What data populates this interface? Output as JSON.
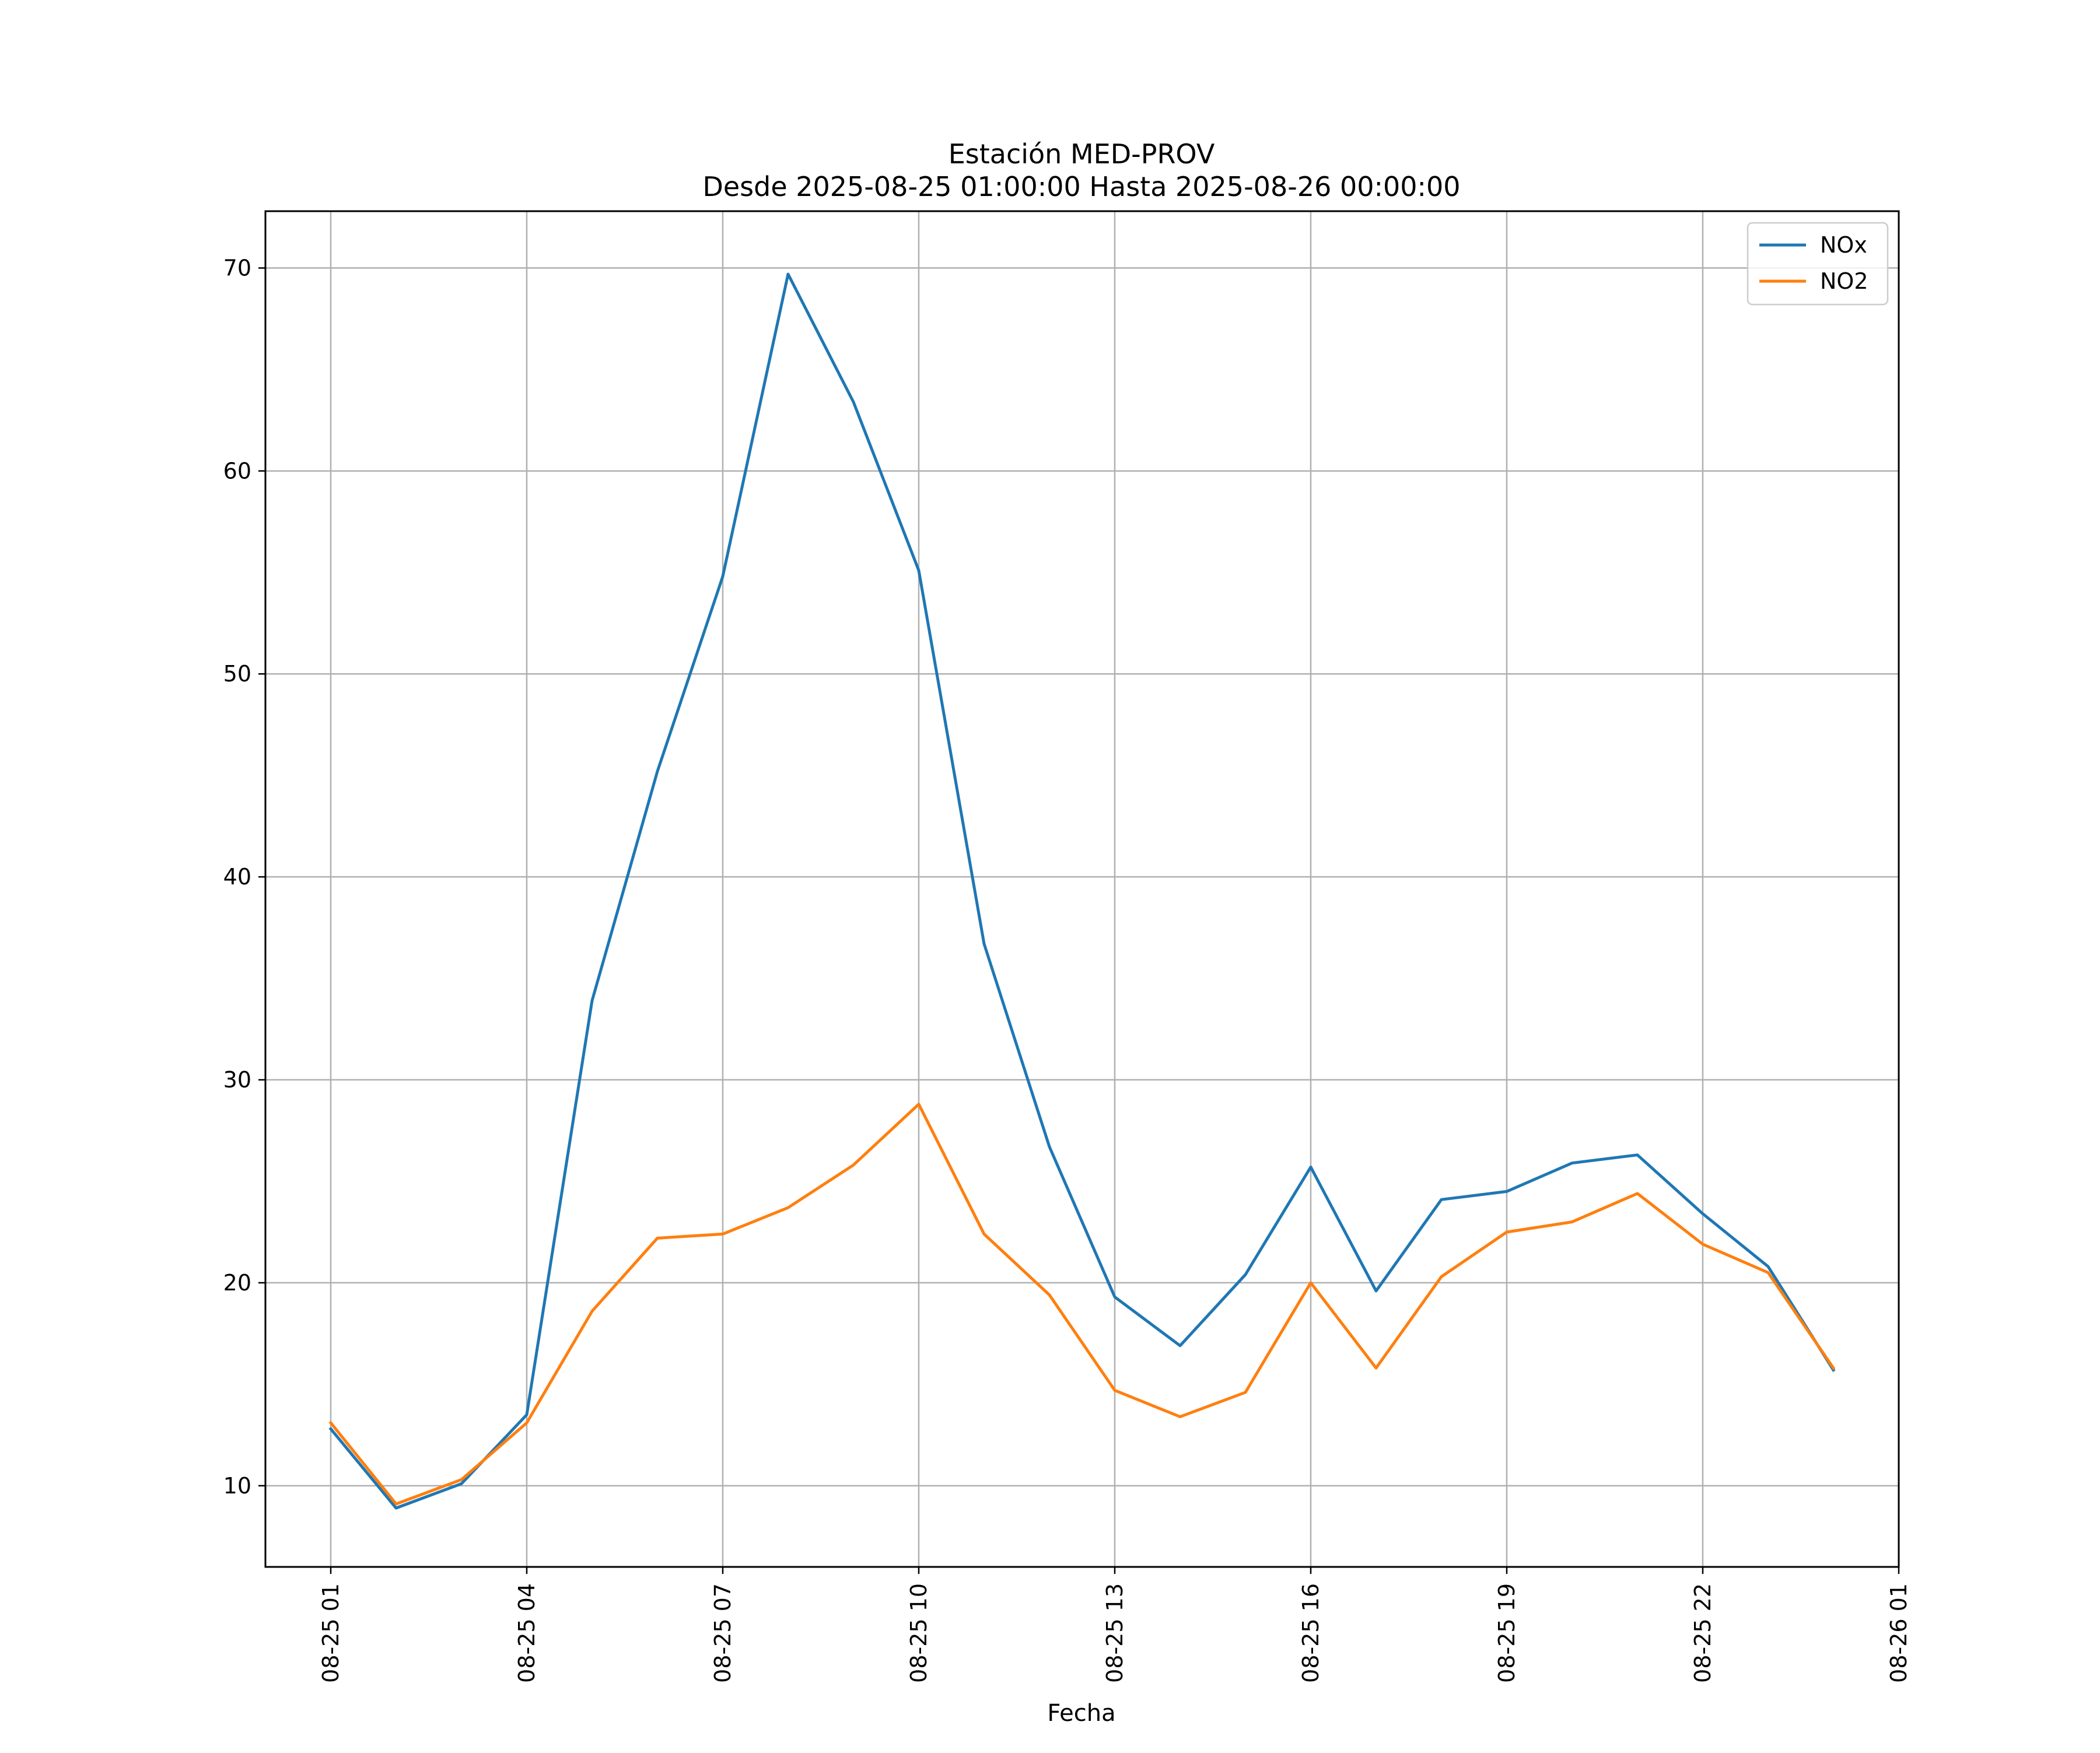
{
  "chart_data": {
    "type": "line",
    "title": "Estación MED-PROV",
    "subtitle": "Desde 2025-08-25 01:00:00 Hasta 2025-08-26 00:00:00",
    "xlabel": "Fecha",
    "ylabel": "",
    "x": [
      "2025-08-25 01:00",
      "2025-08-25 02:00",
      "2025-08-25 03:00",
      "2025-08-25 04:00",
      "2025-08-25 05:00",
      "2025-08-25 06:00",
      "2025-08-25 07:00",
      "2025-08-25 08:00",
      "2025-08-25 09:00",
      "2025-08-25 10:00",
      "2025-08-25 11:00",
      "2025-08-25 12:00",
      "2025-08-25 13:00",
      "2025-08-25 14:00",
      "2025-08-25 15:00",
      "2025-08-25 16:00",
      "2025-08-25 17:00",
      "2025-08-25 18:00",
      "2025-08-25 19:00",
      "2025-08-25 20:00",
      "2025-08-25 21:00",
      "2025-08-25 22:00",
      "2025-08-25 23:00",
      "2025-08-26 00:00"
    ],
    "series": [
      {
        "name": "NOx",
        "color": "#1f77b4",
        "values": [
          12.8,
          8.9,
          10.1,
          13.5,
          33.9,
          45.2,
          54.8,
          69.7,
          63.4,
          55.1,
          36.7,
          26.7,
          19.3,
          16.9,
          20.4,
          25.7,
          19.6,
          24.1,
          24.5,
          25.9,
          26.3,
          23.4,
          20.8,
          15.7
        ]
      },
      {
        "name": "NO2",
        "color": "#ff7f0e",
        "values": [
          13.1,
          9.1,
          10.3,
          13.1,
          18.6,
          22.2,
          22.4,
          23.7,
          25.8,
          28.8,
          22.4,
          19.4,
          14.7,
          13.4,
          14.6,
          20.0,
          15.8,
          20.3,
          22.5,
          23.0,
          24.4,
          21.9,
          20.5,
          15.8
        ]
      }
    ],
    "xticks": [
      "08-25 01",
      "08-25 04",
      "08-25 07",
      "08-25 10",
      "08-25 13",
      "08-25 16",
      "08-25 19",
      "08-25 22",
      "08-26 01"
    ],
    "xtick_values": [
      "2025-08-25 01:00",
      "2025-08-25 04:00",
      "2025-08-25 07:00",
      "2025-08-25 10:00",
      "2025-08-25 13:00",
      "2025-08-25 16:00",
      "2025-08-25 19:00",
      "2025-08-25 22:00",
      "2025-08-26 01:00"
    ],
    "yticks": [
      "10",
      "20",
      "30",
      "40",
      "50",
      "60",
      "70"
    ],
    "ytick_values": [
      10,
      20,
      30,
      40,
      50,
      60,
      70
    ],
    "xlim": [
      "2025-08-25 00:00",
      "2025-08-26 01:00"
    ],
    "ylim": [
      6.0,
      72.8
    ],
    "grid": true,
    "legend_position": "top-right"
  }
}
